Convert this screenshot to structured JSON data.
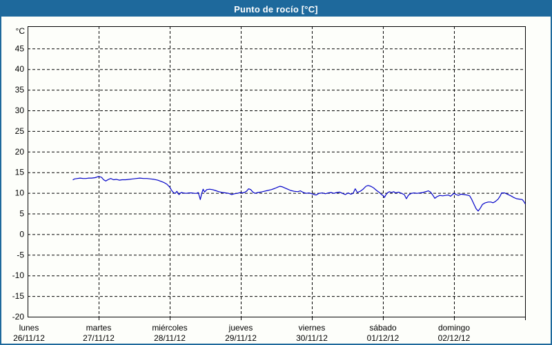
{
  "window": {
    "title": "Punto de rocío [°C]"
  },
  "colors": {
    "titlebar_bg": "#1e699c",
    "window_border": "#1e699c",
    "title_text": "#ffffff",
    "plot_bg": "#fdfefa",
    "grid": "#000000",
    "axis": "#000000",
    "label_text": "#000000",
    "line": "#0000c8"
  },
  "chart_data": {
    "type": "line",
    "title": "Punto de rocío [°C]",
    "ylabel": "°C",
    "unit_label": "°C",
    "ylim": [
      -20,
      50.4
    ],
    "y_tick_step": 5,
    "y_ticks": [
      45,
      40,
      35,
      30,
      25,
      20,
      15,
      10,
      5,
      0,
      -5,
      -10,
      -15,
      -20
    ],
    "grid": true,
    "grid_style": "dashed",
    "legend_position": "none",
    "xlim_days": [
      0,
      7
    ],
    "x_days": [
      {
        "name": "lunes",
        "date": "26/11/12"
      },
      {
        "name": "martes",
        "date": "27/11/12"
      },
      {
        "name": "miércoles",
        "date": "28/11/12"
      },
      {
        "name": "jueves",
        "date": "29/11/12"
      },
      {
        "name": "viernes",
        "date": "30/11/12"
      },
      {
        "name": "sábado",
        "date": "01/12/12"
      },
      {
        "name": "domingo",
        "date": "02/12/12"
      }
    ],
    "series": [
      {
        "name": "Punto de rocío",
        "color": "#0000c8",
        "x_unit": "days_since_monday_00h",
        "points": [
          [
            0.64,
            13.2
          ],
          [
            0.66,
            13.4
          ],
          [
            0.7,
            13.5
          ],
          [
            0.74,
            13.6
          ],
          [
            0.78,
            13.5
          ],
          [
            0.82,
            13.5
          ],
          [
            0.86,
            13.6
          ],
          [
            0.9,
            13.6
          ],
          [
            0.95,
            13.7
          ],
          [
            1.0,
            14.0
          ],
          [
            1.04,
            13.8
          ],
          [
            1.07,
            13.2
          ],
          [
            1.1,
            12.9
          ],
          [
            1.14,
            13.3
          ],
          [
            1.17,
            13.5
          ],
          [
            1.21,
            13.2
          ],
          [
            1.25,
            13.3
          ],
          [
            1.29,
            13.1
          ],
          [
            1.33,
            13.2
          ],
          [
            1.38,
            13.2
          ],
          [
            1.43,
            13.3
          ],
          [
            1.48,
            13.4
          ],
          [
            1.53,
            13.5
          ],
          [
            1.58,
            13.6
          ],
          [
            1.63,
            13.5
          ],
          [
            1.68,
            13.5
          ],
          [
            1.73,
            13.4
          ],
          [
            1.78,
            13.3
          ],
          [
            1.83,
            13.1
          ],
          [
            1.88,
            12.8
          ],
          [
            1.92,
            12.5
          ],
          [
            1.96,
            12.1
          ],
          [
            2.0,
            11.4
          ],
          [
            2.02,
            10.8
          ],
          [
            2.04,
            10.3
          ],
          [
            2.06,
            10.0
          ],
          [
            2.08,
            9.9
          ],
          [
            2.1,
            10.4
          ],
          [
            2.13,
            9.6
          ],
          [
            2.16,
            10.1
          ],
          [
            2.19,
            10.0
          ],
          [
            2.23,
            9.9
          ],
          [
            2.27,
            10.0
          ],
          [
            2.31,
            10.0
          ],
          [
            2.35,
            9.9
          ],
          [
            2.38,
            9.9
          ],
          [
            2.4,
            10.1
          ],
          [
            2.42,
            9.0
          ],
          [
            2.43,
            8.4
          ],
          [
            2.45,
            9.9
          ],
          [
            2.47,
            10.9
          ],
          [
            2.49,
            10.2
          ],
          [
            2.52,
            10.8
          ],
          [
            2.56,
            10.9
          ],
          [
            2.6,
            10.8
          ],
          [
            2.64,
            10.6
          ],
          [
            2.69,
            10.3
          ],
          [
            2.74,
            10.1
          ],
          [
            2.79,
            10.0
          ],
          [
            2.83,
            9.9
          ],
          [
            2.87,
            9.6
          ],
          [
            2.91,
            9.8
          ],
          [
            2.95,
            9.9
          ],
          [
            3.0,
            10.1
          ],
          [
            3.02,
            10.0
          ],
          [
            3.05,
            10.1
          ],
          [
            3.08,
            10.4
          ],
          [
            3.11,
            11.0
          ],
          [
            3.14,
            10.8
          ],
          [
            3.17,
            10.2
          ],
          [
            3.2,
            9.9
          ],
          [
            3.24,
            10.1
          ],
          [
            3.28,
            10.2
          ],
          [
            3.33,
            10.4
          ],
          [
            3.38,
            10.6
          ],
          [
            3.43,
            10.8
          ],
          [
            3.48,
            11.1
          ],
          [
            3.52,
            11.4
          ],
          [
            3.55,
            11.6
          ],
          [
            3.58,
            11.5
          ],
          [
            3.62,
            11.2
          ],
          [
            3.66,
            10.9
          ],
          [
            3.7,
            10.6
          ],
          [
            3.75,
            10.4
          ],
          [
            3.8,
            10.3
          ],
          [
            3.84,
            10.5
          ],
          [
            3.88,
            10.1
          ],
          [
            3.92,
            9.9
          ],
          [
            3.96,
            10.0
          ],
          [
            4.0,
            9.8
          ],
          [
            4.03,
            9.6
          ],
          [
            4.06,
            9.5
          ],
          [
            4.1,
            9.9
          ],
          [
            4.15,
            10.0
          ],
          [
            4.19,
            9.8
          ],
          [
            4.23,
            10.0
          ],
          [
            4.27,
            10.1
          ],
          [
            4.31,
            9.9
          ],
          [
            4.35,
            10.1
          ],
          [
            4.39,
            10.2
          ],
          [
            4.43,
            9.9
          ],
          [
            4.47,
            9.6
          ],
          [
            4.51,
            10.0
          ],
          [
            4.55,
            9.7
          ],
          [
            4.58,
            9.9
          ],
          [
            4.61,
            11.0
          ],
          [
            4.64,
            10.1
          ],
          [
            4.68,
            10.4
          ],
          [
            4.72,
            10.9
          ],
          [
            4.76,
            11.6
          ],
          [
            4.79,
            11.8
          ],
          [
            4.83,
            11.6
          ],
          [
            4.87,
            11.2
          ],
          [
            4.91,
            10.6
          ],
          [
            4.95,
            10.1
          ],
          [
            4.98,
            9.6
          ],
          [
            5.0,
            9.4
          ],
          [
            5.02,
            8.9
          ],
          [
            5.04,
            9.5
          ],
          [
            5.06,
            10.0
          ],
          [
            5.09,
            10.3
          ],
          [
            5.12,
            10.1
          ],
          [
            5.15,
            10.3
          ],
          [
            5.18,
            10.0
          ],
          [
            5.22,
            10.2
          ],
          [
            5.26,
            9.9
          ],
          [
            5.3,
            9.6
          ],
          [
            5.33,
            8.6
          ],
          [
            5.36,
            9.5
          ],
          [
            5.4,
            9.9
          ],
          [
            5.44,
            10.0
          ],
          [
            5.48,
            9.9
          ],
          [
            5.52,
            10.0
          ],
          [
            5.56,
            10.1
          ],
          [
            5.6,
            10.3
          ],
          [
            5.64,
            10.5
          ],
          [
            5.67,
            10.2
          ],
          [
            5.7,
            9.5
          ],
          [
            5.73,
            8.7
          ],
          [
            5.76,
            9.1
          ],
          [
            5.8,
            9.4
          ],
          [
            5.84,
            9.3
          ],
          [
            5.88,
            9.4
          ],
          [
            5.92,
            9.5
          ],
          [
            5.95,
            9.2
          ],
          [
            6.0,
            9.9
          ],
          [
            6.03,
            9.6
          ],
          [
            6.06,
            9.4
          ],
          [
            6.1,
            9.7
          ],
          [
            6.14,
            9.6
          ],
          [
            6.18,
            9.5
          ],
          [
            6.22,
            9.3
          ],
          [
            6.25,
            8.4
          ],
          [
            6.28,
            7.3
          ],
          [
            6.31,
            6.2
          ],
          [
            6.34,
            5.6
          ],
          [
            6.37,
            6.3
          ],
          [
            6.4,
            7.2
          ],
          [
            6.44,
            7.6
          ],
          [
            6.48,
            7.8
          ],
          [
            6.52,
            7.8
          ],
          [
            6.55,
            7.6
          ],
          [
            6.58,
            7.9
          ],
          [
            6.62,
            8.5
          ],
          [
            6.65,
            9.3
          ],
          [
            6.67,
            10.0
          ],
          [
            6.71,
            10.0
          ],
          [
            6.75,
            9.7
          ],
          [
            6.8,
            9.3
          ],
          [
            6.84,
            8.9
          ],
          [
            6.88,
            8.6
          ],
          [
            6.92,
            8.5
          ],
          [
            6.96,
            8.4
          ],
          [
            6.98,
            8.0
          ],
          [
            7.0,
            7.4
          ]
        ]
      }
    ]
  }
}
